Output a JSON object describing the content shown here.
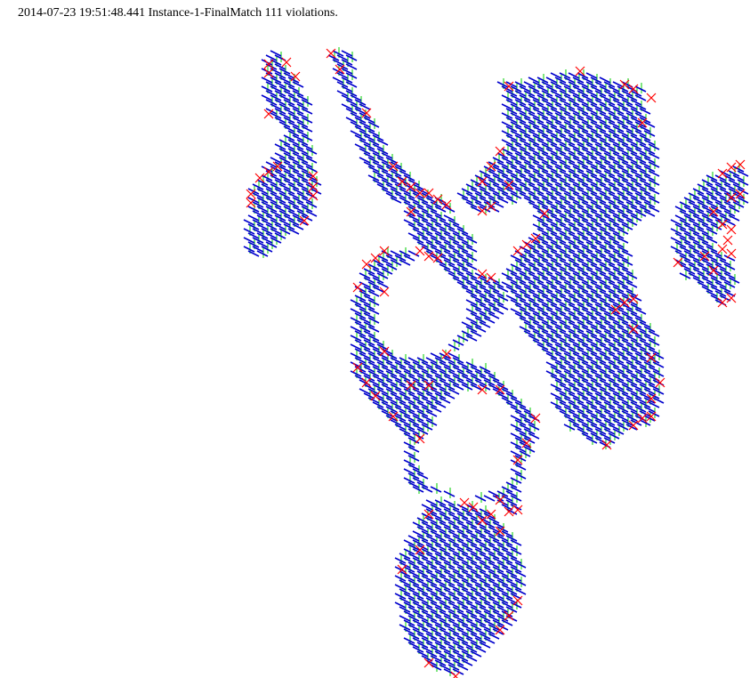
{
  "header": {
    "timestamp": "2014-07-23 19:51:48.441",
    "instance": "Instance-1-FinalMatch",
    "violation_count": "111",
    "suffix": "violations."
  },
  "colors": {
    "primary_segment": "#0000cc",
    "secondary_segment": "#00cc00",
    "violation_marker": "#ff0000",
    "background": "#ffffff"
  },
  "legend_items": [
    "primary-segment",
    "secondary-segment",
    "violation-marker"
  ]
}
